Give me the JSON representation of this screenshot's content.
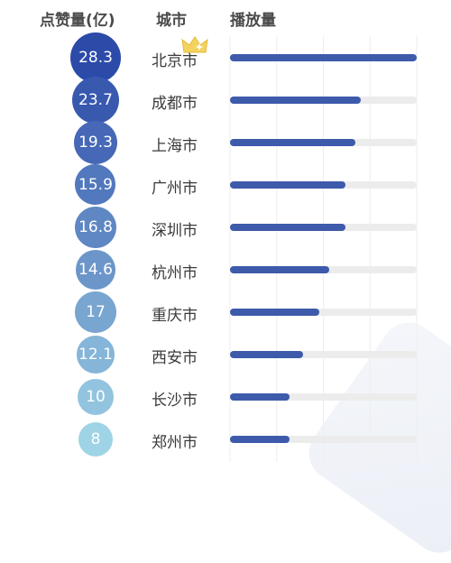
{
  "headers": {
    "likes": "点赞量(亿)",
    "city": "城市",
    "play": "播放量"
  },
  "colors": {
    "bar": "#3d5aab",
    "track": "#ececec",
    "bubble_top": "#2c4aa8",
    "bubble_bottom": "#9fd3e6",
    "crown": "#f3d35e"
  },
  "chart_data": {
    "type": "bar",
    "orientation": "horizontal",
    "title": "",
    "categories": [
      "北京市",
      "成都市",
      "上海市",
      "广州市",
      "深圳市",
      "杭州市",
      "重庆市",
      "西安市",
      "长沙市",
      "郑州市"
    ],
    "series": [
      {
        "name": "点赞量(亿)",
        "values": [
          28.3,
          23.7,
          19.3,
          15.9,
          16.8,
          14.6,
          17,
          12.1,
          10,
          8
        ]
      },
      {
        "name": "播放量",
        "values": [
          100,
          70,
          67,
          62,
          62,
          53,
          48,
          39,
          32,
          32
        ]
      }
    ],
    "xlim": [
      0,
      100
    ],
    "grid": true
  }
}
